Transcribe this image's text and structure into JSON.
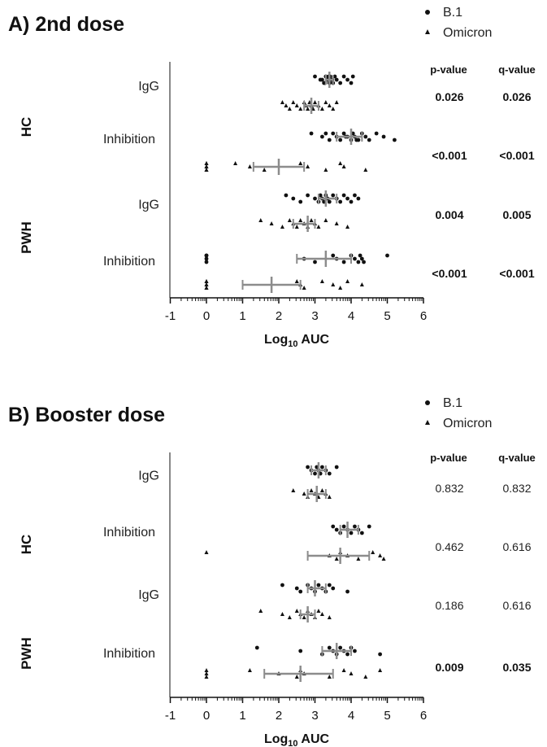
{
  "legend": {
    "b1_label": "B.1",
    "omicron_label": "Omicron",
    "b1_marker": "circle",
    "omicron_marker": "triangle"
  },
  "stats_header": {
    "p": "p-value",
    "q": "q-value"
  },
  "colors": {
    "points": "#111111",
    "summary": "#8c8c8c",
    "axis": "#111111"
  },
  "chart_data": [
    {
      "type": "scatter",
      "title": "A) 2nd dose",
      "xlabel_main": "Log",
      "xlabel_sub": "10",
      "xlabel_rest": " AUC",
      "xlim": [
        -1,
        6
      ],
      "xticks": [
        "-1",
        "0",
        "1",
        "2",
        "3",
        "4",
        "5",
        "6"
      ],
      "groups": [
        {
          "name": "HC",
          "rows": [
            {
              "label": "IgG",
              "p": "0.026",
              "q": "0.026",
              "bold": true,
              "b1": {
                "mean": 3.4,
                "lo": 3.3,
                "hi": 3.5,
                "points": [
                  3.0,
                  3.2,
                  3.25,
                  3.3,
                  3.35,
                  3.4,
                  3.42,
                  3.45,
                  3.5,
                  3.55,
                  3.6,
                  3.7,
                  3.8,
                  3.9,
                  4.0,
                  4.05,
                  3.15,
                  3.28,
                  3.38,
                  3.48
                ]
              },
              "omicron": {
                "mean": 2.9,
                "lo": 2.7,
                "hi": 3.1,
                "points": [
                  2.1,
                  2.2,
                  2.3,
                  2.4,
                  2.5,
                  2.6,
                  2.7,
                  2.75,
                  2.8,
                  2.85,
                  2.9,
                  2.95,
                  3.0,
                  3.1,
                  3.2,
                  3.3,
                  3.4,
                  3.5,
                  3.6
                ]
              }
            },
            {
              "label": "Inhibition",
              "p": "<0.001",
              "q": "<0.001",
              "bold": true,
              "b1": {
                "mean": 4.0,
                "lo": 3.6,
                "hi": 4.3,
                "points": [
                  2.9,
                  3.2,
                  3.4,
                  3.5,
                  3.6,
                  3.7,
                  3.8,
                  3.9,
                  4.0,
                  4.05,
                  4.1,
                  4.2,
                  4.3,
                  4.4,
                  4.5,
                  4.7,
                  4.9,
                  5.2,
                  3.3,
                  3.85,
                  4.15
                ]
              },
              "omicron": {
                "mean": 2.0,
                "lo": 1.3,
                "hi": 2.7,
                "points": [
                  0,
                  0,
                  0,
                  0,
                  0,
                  0,
                  0.8,
                  1.2,
                  1.6,
                  2.6,
                  2.8,
                  3.3,
                  3.7,
                  3.8,
                  4.4
                ]
              }
            }
          ]
        },
        {
          "name": "PWH",
          "rows": [
            {
              "label": "IgG",
              "p": "0.004",
              "q": "0.005",
              "bold": true,
              "b1": {
                "mean": 3.3,
                "lo": 3.1,
                "hi": 3.6,
                "points": [
                  2.2,
                  2.4,
                  2.6,
                  2.8,
                  3.0,
                  3.1,
                  3.15,
                  3.2,
                  3.25,
                  3.3,
                  3.35,
                  3.4,
                  3.5,
                  3.6,
                  3.7,
                  3.8,
                  3.9,
                  4.0,
                  4.1,
                  4.2
                ]
              },
              "omicron": {
                "mean": 2.8,
                "lo": 2.4,
                "hi": 3.0,
                "points": [
                  1.5,
                  1.8,
                  2.1,
                  2.3,
                  2.4,
                  2.5,
                  2.6,
                  2.7,
                  2.8,
                  2.9,
                  3.0,
                  3.1,
                  3.3,
                  3.6,
                  3.9
                ]
              }
            },
            {
              "label": "Inhibition",
              "p": "<0.001",
              "q": "<0.001",
              "bold": true,
              "b1": {
                "mean": 3.3,
                "lo": 2.5,
                "hi": 4.0,
                "points": [
                  0,
                  0,
                  0,
                  0,
                  2.7,
                  3.0,
                  3.5,
                  3.6,
                  3.8,
                  4.0,
                  4.1,
                  4.2,
                  4.25,
                  4.3,
                  4.35,
                  5.0
                ]
              },
              "omicron": {
                "mean": 1.8,
                "lo": 1.0,
                "hi": 2.6,
                "points": [
                  0,
                  0,
                  0,
                  0,
                  0,
                  0,
                  2.5,
                  2.6,
                  2.7,
                  3.2,
                  3.5,
                  3.7,
                  3.9,
                  4.3
                ]
              }
            }
          ]
        }
      ]
    },
    {
      "type": "scatter",
      "title": "B) Booster dose",
      "xlabel_main": "Log",
      "xlabel_sub": "10",
      "xlabel_rest": " AUC",
      "xlim": [
        -1,
        6
      ],
      "xticks": [
        "-1",
        "0",
        "1",
        "2",
        "3",
        "4",
        "5",
        "6"
      ],
      "groups": [
        {
          "name": "HC",
          "rows": [
            {
              "label": "IgG",
              "p": "0.832",
              "q": "0.832",
              "bold": false,
              "b1": {
                "mean": 3.1,
                "lo": 2.9,
                "hi": 3.3,
                "points": [
                  2.8,
                  2.9,
                  3.0,
                  3.05,
                  3.1,
                  3.15,
                  3.2,
                  3.3,
                  3.4,
                  3.6
                ]
              },
              "omicron": {
                "mean": 3.05,
                "lo": 2.8,
                "hi": 3.3,
                "points": [
                  2.4,
                  2.7,
                  2.8,
                  2.9,
                  3.0,
                  3.1,
                  3.2,
                  3.3,
                  3.4
                ]
              }
            },
            {
              "label": "Inhibition",
              "p": "0.462",
              "q": "0.616",
              "bold": false,
              "b1": {
                "mean": 3.9,
                "lo": 3.7,
                "hi": 4.2,
                "points": [
                  3.5,
                  3.6,
                  3.7,
                  3.8,
                  3.9,
                  4.0,
                  4.1,
                  4.2,
                  4.3,
                  4.5
                ]
              },
              "omicron": {
                "mean": 3.7,
                "lo": 2.8,
                "hi": 4.5,
                "points": [
                  0,
                  3.4,
                  3.6,
                  3.7,
                  3.9,
                  4.2,
                  4.6,
                  4.8,
                  4.9
                ]
              }
            }
          ]
        },
        {
          "name": "PWH",
          "rows": [
            {
              "label": "IgG",
              "p": "0.186",
              "q": "0.616",
              "bold": false,
              "b1": {
                "mean": 3.0,
                "lo": 2.8,
                "hi": 3.3,
                "points": [
                  2.1,
                  2.5,
                  2.6,
                  2.8,
                  2.9,
                  3.0,
                  3.1,
                  3.2,
                  3.3,
                  3.4,
                  3.5,
                  3.9
                ]
              },
              "omicron": {
                "mean": 2.8,
                "lo": 2.6,
                "hi": 3.0,
                "points": [
                  1.5,
                  2.1,
                  2.3,
                  2.5,
                  2.6,
                  2.7,
                  2.8,
                  2.9,
                  3.0,
                  3.1,
                  3.2,
                  3.4
                ]
              }
            },
            {
              "label": "Inhibition",
              "p": "0.009",
              "q": "0.035",
              "bold": true,
              "b1": {
                "mean": 3.6,
                "lo": 3.2,
                "hi": 4.0,
                "points": [
                  1.4,
                  2.6,
                  3.2,
                  3.4,
                  3.5,
                  3.6,
                  3.7,
                  3.8,
                  3.9,
                  4.0,
                  4.1,
                  4.8
                ]
              },
              "omicron": {
                "mean": 2.6,
                "lo": 1.6,
                "hi": 3.5,
                "points": [
                  0,
                  0,
                  0,
                  1.2,
                  2.0,
                  2.5,
                  2.6,
                  2.7,
                  3.4,
                  3.8,
                  4.0,
                  4.4,
                  4.8
                ]
              }
            }
          ]
        }
      ]
    }
  ]
}
